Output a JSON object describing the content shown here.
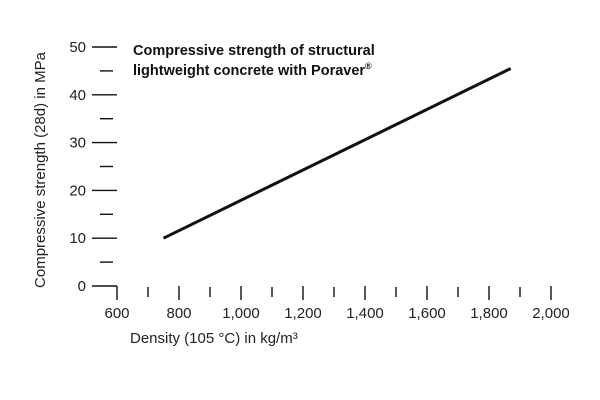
{
  "chart_data": {
    "type": "line",
    "title": "Compressive strength of structural",
    "title_line2": "lightweight concrete with Poraver",
    "title_superscript": "®",
    "xlabel": "Density (105 °C) in kg/m³",
    "ylabel": "Compressive strength (28d) in MPa",
    "xlim": [
      600,
      2000
    ],
    "ylim": [
      0,
      50
    ],
    "x_ticks": [
      600,
      800,
      1000,
      1200,
      1400,
      1600,
      1800,
      2000
    ],
    "x_tick_labels": [
      "600",
      "800",
      "1,000",
      "1,200",
      "1,400",
      "1,600",
      "1,800",
      "2,000"
    ],
    "y_ticks": [
      0,
      10,
      20,
      30,
      40,
      50
    ],
    "y_tick_labels": [
      "0",
      "10",
      "20",
      "30",
      "40",
      "50"
    ],
    "grid": false,
    "series": [
      {
        "x": [
          750,
          1870
        ],
        "y": [
          10,
          45.5
        ],
        "color": "#111111"
      }
    ]
  }
}
